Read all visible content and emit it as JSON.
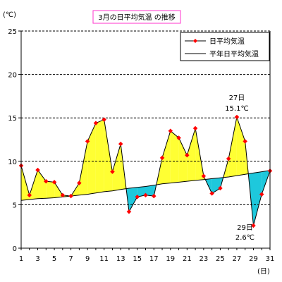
{
  "chart_data": {
    "type": "line",
    "title": "3月の日平均気温 の推移",
    "ylabel": "(℃)",
    "xlabel": "(日)",
    "ylim": [
      0,
      25
    ],
    "yticks": [
      0,
      5,
      10,
      15,
      20,
      25
    ],
    "xlim": [
      1,
      31
    ],
    "xticks": [
      1,
      3,
      5,
      7,
      9,
      11,
      13,
      15,
      17,
      19,
      21,
      23,
      25,
      27,
      29,
      31
    ],
    "grid": "horizontal-dashed",
    "legend_position": "top-right",
    "colors": {
      "above_normal_fill": "#ffff33",
      "below_normal_fill": "#1ec8dc",
      "daily_marker": "#ff0000",
      "line": "#000000",
      "title_border": "#ff33cc"
    },
    "series": [
      {
        "name": "日平均気温",
        "x": [
          1,
          2,
          3,
          4,
          5,
          6,
          7,
          8,
          9,
          10,
          11,
          12,
          13,
          14,
          15,
          16,
          17,
          18,
          19,
          20,
          21,
          22,
          23,
          24,
          25,
          26,
          27,
          28,
          29,
          30,
          31
        ],
        "values": [
          9.5,
          6.1,
          9.0,
          7.7,
          7.6,
          6.1,
          6.0,
          7.5,
          12.3,
          14.4,
          14.8,
          8.8,
          12.0,
          4.2,
          5.9,
          6.1,
          6.0,
          10.4,
          13.5,
          12.7,
          10.7,
          13.8,
          8.3,
          6.3,
          6.9,
          10.3,
          15.1,
          12.3,
          2.6,
          6.2,
          8.9
        ],
        "style": "line-markers"
      },
      {
        "name": "平年日平均気温",
        "x": [
          1,
          2,
          3,
          4,
          5,
          6,
          7,
          8,
          9,
          10,
          11,
          12,
          13,
          14,
          15,
          16,
          17,
          18,
          19,
          20,
          21,
          22,
          23,
          24,
          25,
          26,
          27,
          28,
          29,
          30,
          31
        ],
        "values": [
          5.5,
          5.6,
          5.7,
          5.75,
          5.8,
          5.9,
          6.0,
          6.1,
          6.2,
          6.35,
          6.5,
          6.6,
          6.75,
          6.9,
          7.0,
          7.1,
          7.25,
          7.4,
          7.5,
          7.6,
          7.7,
          7.8,
          7.9,
          8.0,
          8.1,
          8.2,
          8.35,
          8.5,
          8.65,
          8.8,
          8.95
        ],
        "style": "line"
      }
    ],
    "annotations": [
      {
        "day": 27,
        "line1": "27日",
        "line2": "15.1℃"
      },
      {
        "day": 29,
        "line1": "29日",
        "line2": "2.6℃"
      }
    ]
  }
}
